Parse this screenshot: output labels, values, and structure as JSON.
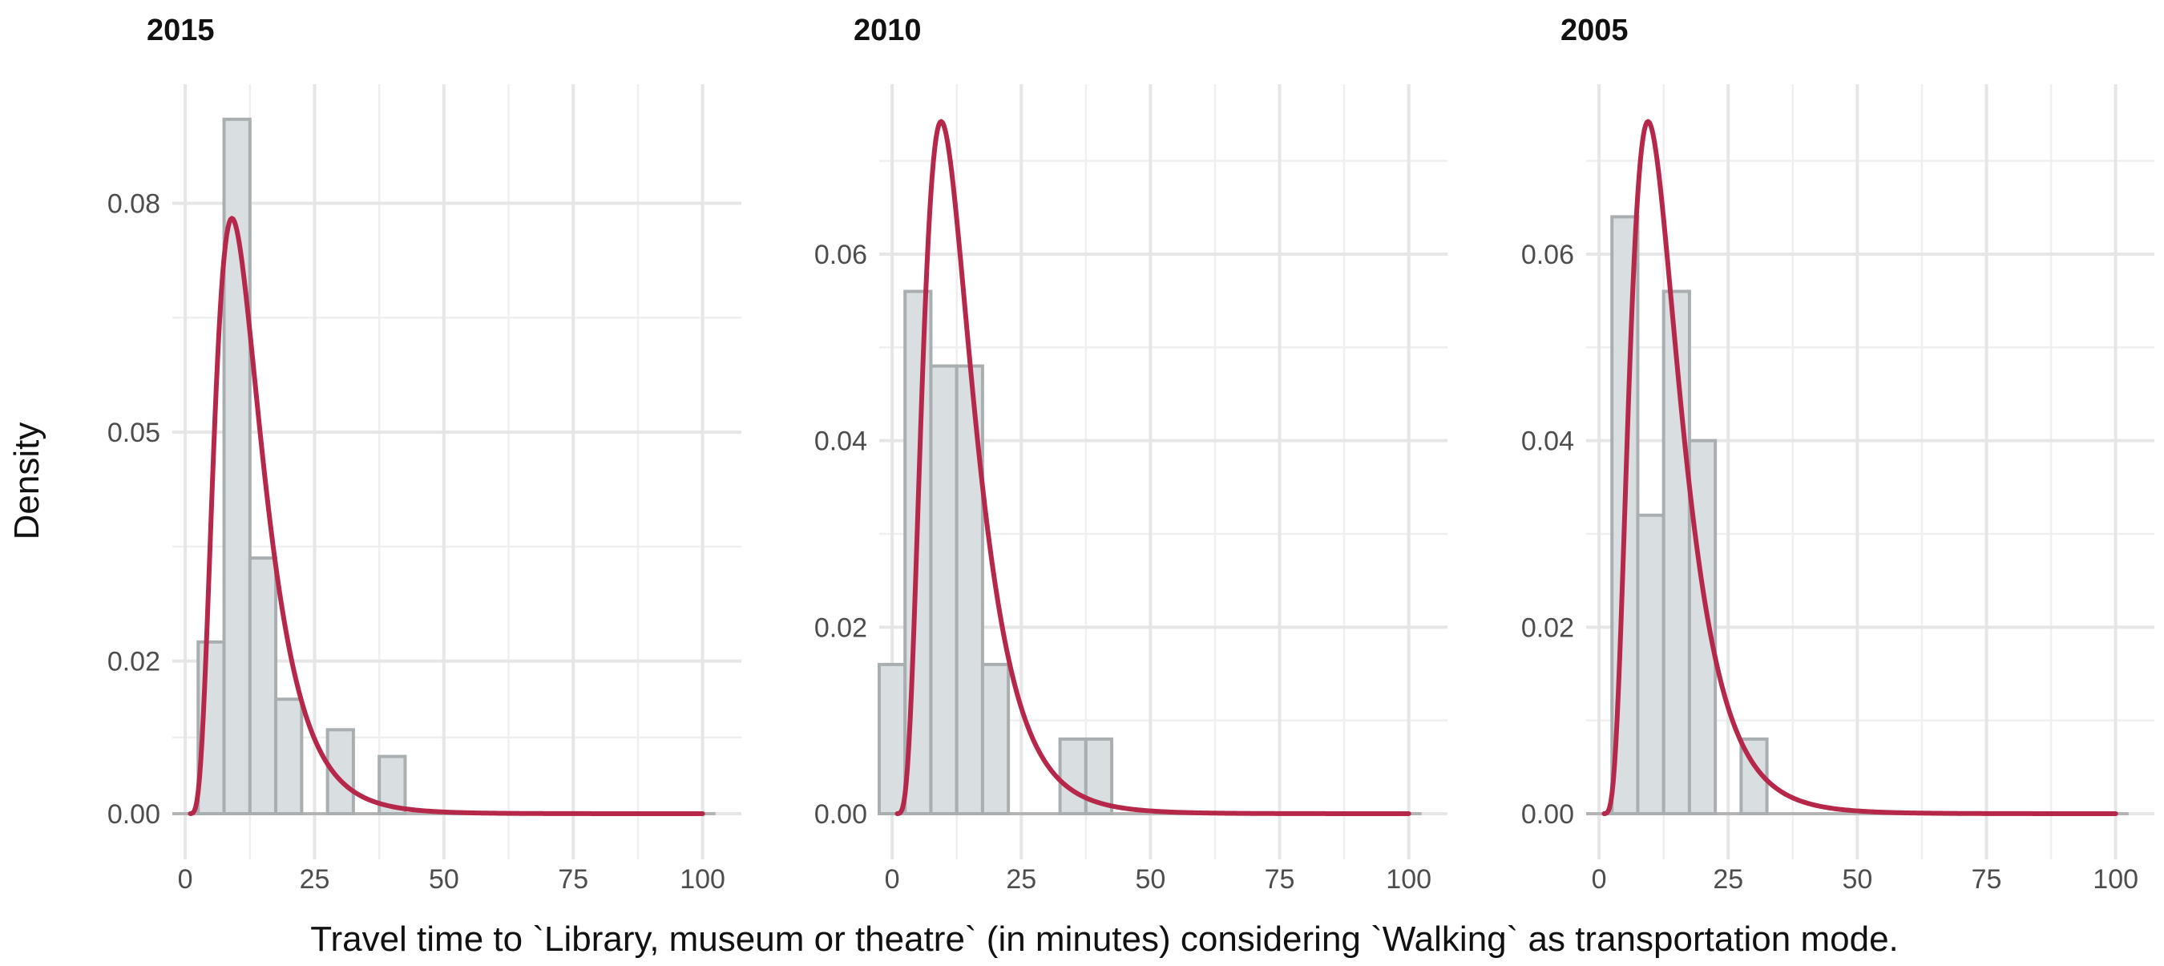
{
  "chart_data": [
    {
      "type": "bar",
      "title": "2015",
      "bin_width": 5,
      "bins": [
        0,
        5,
        10,
        15,
        20,
        25,
        30,
        35,
        40
      ],
      "values": [
        0,
        0.0225,
        0.091,
        0.0335,
        0.015,
        0,
        0.011,
        0,
        0.0075
      ],
      "xlim": [
        -2.5,
        107.5
      ],
      "ylim": [
        0,
        0.0935
      ],
      "xticks": [
        0,
        25,
        50,
        75,
        100
      ],
      "yticks": [
        0.0,
        0.02,
        0.05,
        0.08
      ],
      "xtick_labels": [
        "0",
        "25",
        "50",
        "75",
        "100"
      ],
      "ytick_labels": [
        "0.00",
        "0.02",
        "0.05",
        "0.08"
      ],
      "curve": {
        "name": "",
        "meanlog": 2.45,
        "sdlog": 0.5,
        "x_range": [
          1,
          100
        ]
      }
    },
    {
      "type": "bar",
      "title": "2010",
      "bin_width": 5,
      "bins": [
        0,
        5,
        10,
        15,
        20,
        25,
        30,
        35,
        40
      ],
      "values": [
        0.016,
        0.056,
        0.048,
        0.048,
        0.016,
        0,
        0,
        0.008,
        0.008
      ],
      "xlim": [
        -2.5,
        107.5
      ],
      "ylim": [
        0,
        0.0765
      ],
      "xticks": [
        0,
        25,
        50,
        75,
        100
      ],
      "yticks": [
        0.0,
        0.02,
        0.04,
        0.06
      ],
      "xtick_labels": [
        "0",
        "25",
        "50",
        "75",
        "100"
      ],
      "ytick_labels": [
        "0.00",
        "0.02",
        "0.04",
        "0.06"
      ],
      "curve": {
        "name": "",
        "meanlog": 2.5,
        "sdlog": 0.5,
        "x_range": [
          1,
          100
        ]
      }
    },
    {
      "type": "bar",
      "title": "2005",
      "bin_width": 5,
      "bins": [
        0,
        5,
        10,
        15,
        20,
        25,
        30
      ],
      "values": [
        0,
        0.064,
        0.032,
        0.056,
        0.04,
        0,
        0.008
      ],
      "xlim": [
        -2.5,
        107.5
      ],
      "ylim": [
        0,
        0.0765
      ],
      "xticks": [
        0,
        25,
        50,
        75,
        100
      ],
      "yticks": [
        0.0,
        0.02,
        0.04,
        0.06
      ],
      "xtick_labels": [
        "0",
        "25",
        "50",
        "75",
        "100"
      ],
      "ytick_labels": [
        "0.00",
        "0.02",
        "0.04",
        "0.06"
      ],
      "curve": {
        "name": "",
        "meanlog": 2.5,
        "sdlog": 0.5,
        "x_range": [
          1,
          100
        ]
      }
    }
  ],
  "labels": {
    "ylabel": "Density",
    "xlabel": "Travel time to `Library, museum or theatre` (in minutes) considering `Walking` as transportation mode."
  },
  "colors": {
    "bar_fill": "#d9dee1",
    "bar_stroke": "#a9aeb1",
    "curve": "#b5284a",
    "grid": "#e6e6e6"
  }
}
